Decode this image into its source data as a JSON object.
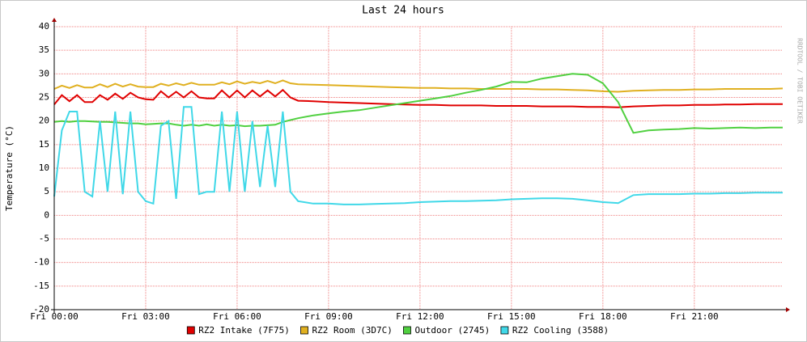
{
  "chart_data": {
    "type": "line",
    "title": "Last 24 hours",
    "y_label": "Temperature (°C)",
    "watermark": "RRDTOOL / TOBI OETIKER",
    "x": [
      0,
      0.25,
      0.5,
      0.75,
      1,
      1.25,
      1.5,
      1.75,
      2,
      2.25,
      2.5,
      2.75,
      3,
      3.25,
      3.5,
      3.75,
      4,
      4.25,
      4.5,
      4.75,
      5,
      5.25,
      5.5,
      5.75,
      6,
      6.25,
      6.5,
      6.75,
      7,
      7.25,
      7.5,
      7.75,
      8,
      8.5,
      9,
      9.5,
      10,
      10.5,
      11,
      11.5,
      12,
      12.5,
      13,
      13.5,
      14,
      14.5,
      15,
      15.5,
      16,
      16.5,
      17,
      17.5,
      18,
      18.5,
      19,
      19.5,
      20,
      20.5,
      21,
      21.5,
      22,
      22.5,
      23,
      23.5,
      23.9
    ],
    "xlim": [
      0,
      23.9
    ],
    "xticks": [
      {
        "value": 0,
        "label": "Fri 00:00"
      },
      {
        "value": 3,
        "label": "Fri 03:00"
      },
      {
        "value": 6,
        "label": "Fri 06:00"
      },
      {
        "value": 9,
        "label": "Fri 09:00"
      },
      {
        "value": 12,
        "label": "Fri 12:00"
      },
      {
        "value": 15,
        "label": "Fri 15:00"
      },
      {
        "value": 18,
        "label": "Fri 18:00"
      },
      {
        "value": 21,
        "label": "Fri 21:00"
      }
    ],
    "ylim": [
      -20,
      40
    ],
    "yticks": [
      -20,
      -15,
      -10,
      -5,
      0,
      5,
      10,
      15,
      20,
      25,
      30,
      35,
      40
    ],
    "grid": true,
    "legend": "bottom",
    "series": [
      {
        "name": "RZ2 Intake (7F75)",
        "color": "#e00000",
        "values": [
          23.5,
          25.5,
          24.2,
          25.5,
          24,
          24,
          25.5,
          24.5,
          25.8,
          24.7,
          26,
          25,
          24.6,
          24.5,
          26.3,
          25,
          26.2,
          25,
          26.3,
          25,
          24.8,
          24.8,
          26.5,
          25,
          26.5,
          25,
          26.5,
          25.2,
          26.5,
          25.2,
          26.6,
          25,
          24.3,
          24.2,
          24,
          23.9,
          23.8,
          23.7,
          23.6,
          23.5,
          23.4,
          23.4,
          23.3,
          23.3,
          23.3,
          23.2,
          23.2,
          23.2,
          23.1,
          23.1,
          23.1,
          23.0,
          23.0,
          22.9,
          23.1,
          23.2,
          23.3,
          23.3,
          23.4,
          23.4,
          23.5,
          23.5,
          23.6,
          23.6,
          23.6
        ]
      },
      {
        "name": "RZ2 Room (3D7C)",
        "color": "#e0b020",
        "values": [
          26.8,
          27.5,
          27,
          27.6,
          27.1,
          27.1,
          27.8,
          27.2,
          27.9,
          27.3,
          27.8,
          27.3,
          27.2,
          27.2,
          27.9,
          27.5,
          28,
          27.6,
          28.1,
          27.7,
          27.7,
          27.7,
          28.2,
          27.8,
          28.4,
          27.9,
          28.3,
          28,
          28.5,
          28,
          28.6,
          28,
          27.8,
          27.7,
          27.6,
          27.5,
          27.4,
          27.3,
          27.2,
          27.1,
          27.0,
          27.0,
          26.9,
          26.9,
          26.8,
          26.8,
          26.8,
          26.8,
          26.7,
          26.7,
          26.6,
          26.5,
          26.3,
          26.2,
          26.4,
          26.5,
          26.6,
          26.6,
          26.7,
          26.7,
          26.8,
          26.8,
          26.8,
          26.8,
          26.9
        ]
      },
      {
        "name": "Outdoor (2745)",
        "color": "#50d040",
        "values": [
          19.8,
          20,
          19.8,
          20,
          20,
          19.9,
          19.8,
          19.8,
          19.7,
          19.6,
          19.5,
          19.5,
          19.3,
          19.4,
          19.5,
          19.5,
          19.2,
          19,
          19.2,
          19,
          19.3,
          19,
          19.2,
          19,
          19.1,
          18.9,
          19,
          19,
          19.1,
          19.2,
          19.8,
          20.2,
          20.6,
          21.2,
          21.6,
          22,
          22.3,
          22.8,
          23.3,
          23.8,
          24.3,
          24.8,
          25.3,
          26,
          26.6,
          27.3,
          28.3,
          28.2,
          29,
          29.5,
          30,
          29.8,
          28,
          24,
          17.5,
          18,
          18.2,
          18.3,
          18.5,
          18.4,
          18.5,
          18.6,
          18.5,
          18.6,
          18.6
        ]
      },
      {
        "name": "RZ2 Cooling (3588)",
        "color": "#40d8e8",
        "values": [
          4,
          18,
          22,
          22,
          5,
          4,
          20,
          5,
          22,
          4.5,
          22,
          5,
          3,
          2.5,
          19,
          20,
          3.5,
          23,
          23,
          4.5,
          5,
          5,
          22,
          5,
          22,
          5,
          20,
          6,
          19,
          6,
          22,
          5,
          3,
          2.5,
          2.5,
          2.3,
          2.3,
          2.4,
          2.5,
          2.6,
          2.8,
          2.9,
          3,
          3,
          3.1,
          3.2,
          3.4,
          3.5,
          3.6,
          3.6,
          3.5,
          3.2,
          2.8,
          2.6,
          4.3,
          4.5,
          4.5,
          4.5,
          4.6,
          4.6,
          4.7,
          4.7,
          4.8,
          4.8,
          4.8
        ]
      }
    ]
  }
}
